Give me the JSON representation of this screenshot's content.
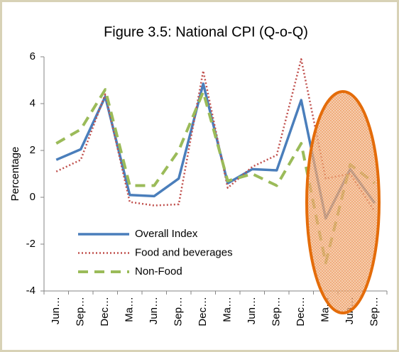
{
  "chart_data": {
    "type": "line",
    "title": "Figure 3.5: National CPI (Q-o-Q)",
    "y_label": "Percentage",
    "categories": [
      "Jun…",
      "Sep…",
      "Dec…",
      "Ma…",
      "Jun…",
      "Sep…",
      "Dec…",
      "Ma…",
      "Jun…",
      "Sep…",
      "Dec…",
      "Ma…",
      "Jun…",
      "Sep…"
    ],
    "series": [
      {
        "name": "Overall Index",
        "color": "#4a7ebb",
        "linestyle": "solid",
        "values": [
          1.6,
          2.05,
          4.3,
          0.1,
          0.05,
          0.8,
          4.85,
          0.6,
          1.2,
          1.15,
          4.15,
          -0.9,
          1.2,
          -0.25
        ]
      },
      {
        "name": "Food and beverages",
        "color": "#c0504d",
        "linestyle": "dotted",
        "values": [
          1.1,
          1.6,
          4.4,
          -0.2,
          -0.35,
          -0.3,
          5.4,
          0.4,
          1.3,
          1.8,
          5.9,
          0.8,
          1.0,
          -0.6
        ]
      },
      {
        "name": "Non-Food",
        "color": "#9bbb59",
        "linestyle": "dashed",
        "values": [
          2.3,
          2.9,
          4.6,
          0.5,
          0.5,
          2.0,
          4.5,
          0.7,
          1.0,
          0.5,
          2.3,
          -2.8,
          1.4,
          0.6
        ]
      }
    ],
    "ylim": [
      -4,
      6
    ],
    "yticks": [
      -4,
      -2,
      0,
      2,
      4,
      6
    ],
    "grid": false,
    "legend": "lower left"
  }
}
